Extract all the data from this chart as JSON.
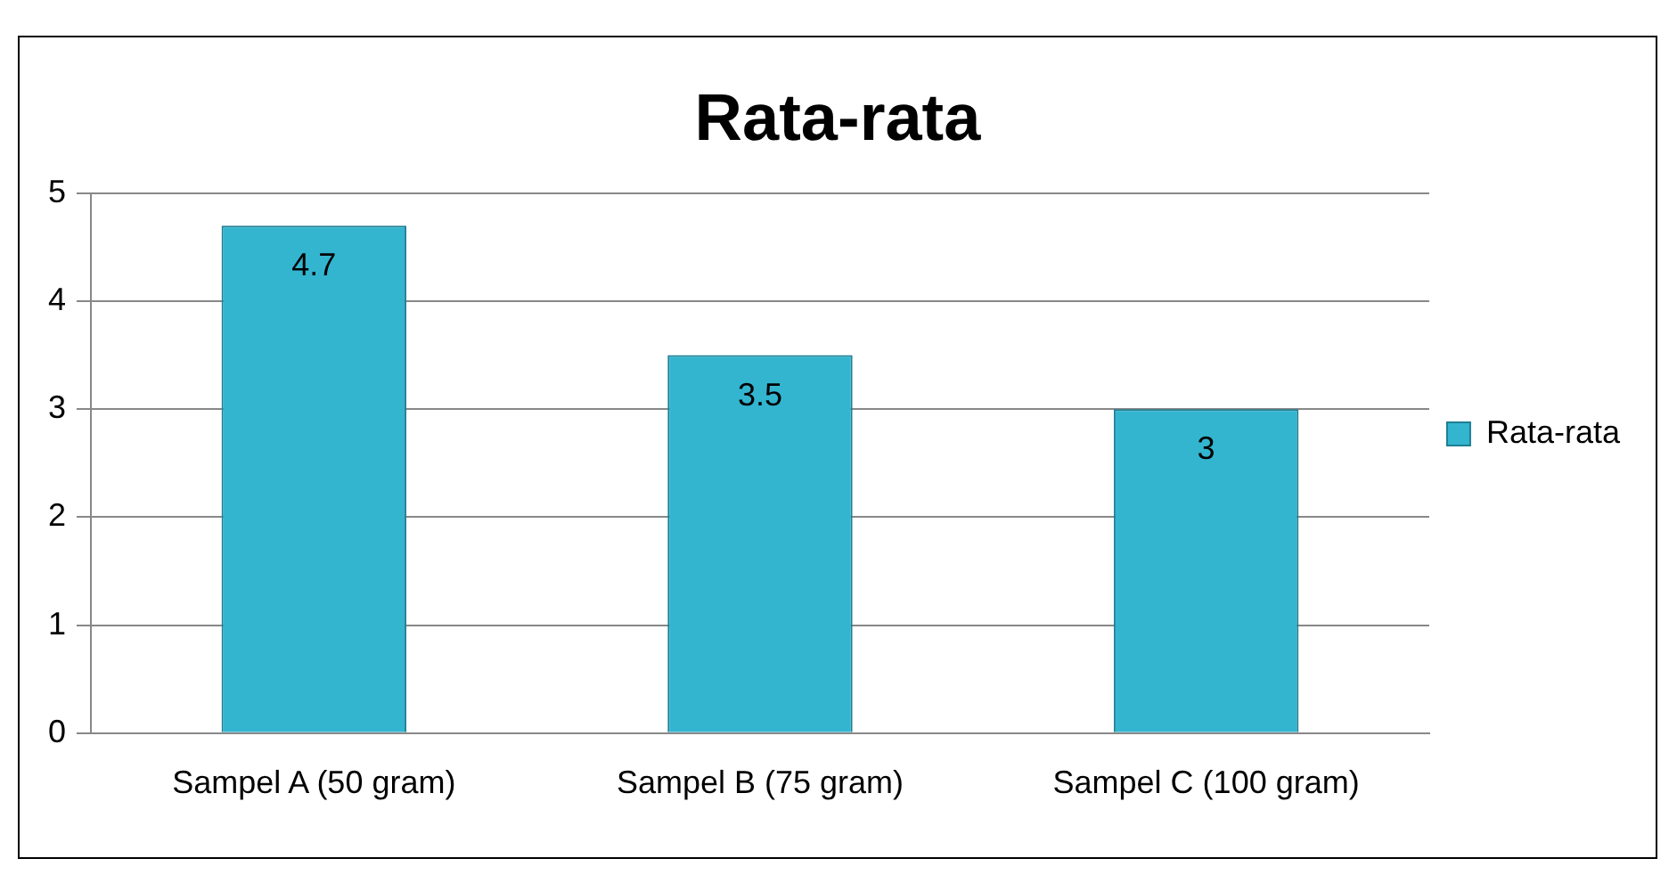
{
  "chart_data": {
    "type": "bar",
    "title": "Rata-rata",
    "categories": [
      "Sampel A (50 gram)",
      "Sampel B (75 gram)",
      "Sampel C (100 gram)"
    ],
    "series": [
      {
        "name": "Rata-rata",
        "color": "#33b5cf",
        "values": [
          4.7,
          3.5,
          3
        ]
      }
    ],
    "ylim": [
      0,
      5
    ],
    "yticks": [
      0,
      1,
      2,
      3,
      4,
      5
    ],
    "grid": "y",
    "legend": "right",
    "data_labels": true
  }
}
